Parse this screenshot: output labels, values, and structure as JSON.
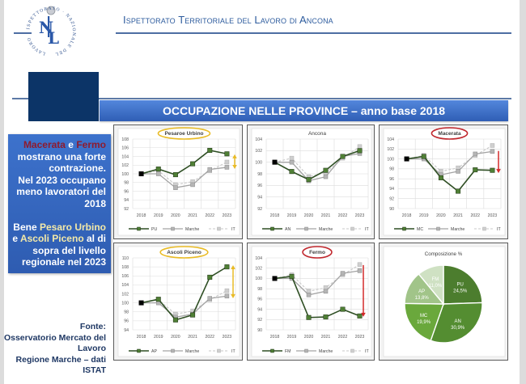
{
  "header": {
    "title": "Ispettorato Territoriale del Lavoro di Ancona",
    "logo": {
      "ring_text": "LAVORO · ISPETTORATO · NAZIONALE DEL",
      "monogram_top": "N",
      "monogram_bottom": "L"
    }
  },
  "section": {
    "title": "OCCUPAZIONE NELLE PROVINCE – anno base 2018"
  },
  "colors": {
    "navy": "#0c3467",
    "title_bar": "#3e70c8",
    "province_line": "#2f4f24",
    "province_marker": "#4f7f35",
    "marche": "#a3a3a3",
    "it": "#c9c9c9",
    "highlight_yellow": "#e9bb25",
    "highlight_red": "#c0272d"
  },
  "textbox": {
    "p1": {
      "s1": "Macerata",
      "s2": " e ",
      "s3": "Fermo",
      "s4": " mostrano una forte contrazione.",
      "s5": "Nel 2023 occupano meno lavoratori del 2018"
    },
    "p2": {
      "s1": "Bene ",
      "s2": "Pesaro Urbino",
      "s3": " e ",
      "s4": "Ascoli Piceno",
      "s5": " al di sopra del livello regionale nel 2023"
    }
  },
  "source": {
    "label": "Fonte:",
    "line1": "Osservatorio Mercato del Lavoro",
    "line2": "Regione Marche – dati ISTAT"
  },
  "chart_data": [
    {
      "type": "line",
      "title": "Pesaroe Urbino",
      "categories": [
        "2018",
        "2019",
        "2020",
        "2021",
        "2022",
        "2023"
      ],
      "ylim": [
        92,
        108
      ],
      "ystep": 2,
      "grid": true,
      "legend_position": "bottom",
      "series": [
        {
          "name": "PU",
          "values": [
            100,
            101.1,
            99.8,
            102.3,
            105.4,
            104.6
          ],
          "style": "province"
        },
        {
          "name": "Marche",
          "values": [
            100,
            100.0,
            96.8,
            97.5,
            101.0,
            101.5
          ],
          "style": "marche"
        },
        {
          "name": "IT",
          "values": [
            100,
            100.7,
            97.5,
            98.2,
            100.7,
            102.7
          ],
          "style": "it"
        }
      ],
      "annotations": {
        "title_ellipse": "#e9bb25",
        "arrow": {
          "color": "#e9bb25",
          "double": true,
          "from": 104.3,
          "to": 101.3,
          "x": 149
        }
      }
    },
    {
      "type": "line",
      "title": "Ancona",
      "categories": [
        "2018",
        "2019",
        "2020",
        "2021",
        "2022",
        "2023"
      ],
      "ylim": [
        92,
        104
      ],
      "ystep": 2,
      "grid": true,
      "legend_position": "bottom",
      "series": [
        {
          "name": "AN",
          "values": [
            100,
            98.4,
            97.0,
            98.6,
            101.0,
            102.0
          ],
          "style": "province"
        },
        {
          "name": "Marche",
          "values": [
            100,
            100.0,
            96.8,
            97.5,
            101.0,
            101.5
          ],
          "style": "marche"
        },
        {
          "name": "IT",
          "values": [
            100,
            100.7,
            97.5,
            98.2,
            100.7,
            102.7
          ],
          "style": "it"
        }
      ],
      "annotations": {}
    },
    {
      "type": "line",
      "title": "Macerata",
      "categories": [
        "2018",
        "2019",
        "2020",
        "2021",
        "2022",
        "2023"
      ],
      "ylim": [
        90,
        104
      ],
      "ystep": 2,
      "grid": true,
      "legend_position": "bottom",
      "series": [
        {
          "name": "MC",
          "values": [
            100,
            100.5,
            96.2,
            93.5,
            97.8,
            97.7
          ],
          "style": "province"
        },
        {
          "name": "Marche",
          "values": [
            100,
            100.0,
            96.8,
            97.5,
            101.0,
            101.5
          ],
          "style": "marche"
        },
        {
          "name": "IT",
          "values": [
            100,
            100.7,
            97.5,
            98.2,
            100.7,
            102.7
          ],
          "style": "it"
        }
      ],
      "annotations": {
        "title_ellipse": "#c0272d",
        "arrow": {
          "color": "#d42a2a",
          "double": false,
          "from": 101.6,
          "to": 97.3,
          "x": 147
        }
      }
    },
    {
      "type": "line",
      "title": "Ascoli Piceno",
      "categories": [
        "2018",
        "2019",
        "2020",
        "2021",
        "2022",
        "2023"
      ],
      "ylim": [
        94,
        110
      ],
      "ystep": 2,
      "grid": true,
      "legend_position": "bottom",
      "series": [
        {
          "name": "AP",
          "values": [
            100,
            100.8,
            96.2,
            97.3,
            105.7,
            108.0
          ],
          "style": "province"
        },
        {
          "name": "Marche",
          "values": [
            100,
            100.0,
            96.8,
            97.5,
            101.0,
            101.5
          ],
          "style": "marche"
        },
        {
          "name": "IT",
          "values": [
            100,
            100.7,
            97.5,
            98.2,
            100.7,
            102.7
          ],
          "style": "it"
        }
      ],
      "annotations": {
        "title_ellipse": "#e9bb25",
        "arrow": {
          "color": "#e9bb25",
          "double": true,
          "from": 108.2,
          "to": 101.2,
          "x": 147
        }
      }
    },
    {
      "type": "line",
      "title": "Fermo",
      "categories": [
        "2018",
        "2019",
        "2020",
        "2021",
        "2022",
        "2023"
      ],
      "ylim": [
        90,
        104
      ],
      "ystep": 2,
      "grid": true,
      "legend_position": "bottom",
      "series": [
        {
          "name": "FM",
          "values": [
            100,
            100.4,
            92.4,
            92.5,
            94.0,
            92.7
          ],
          "style": "province"
        },
        {
          "name": "Marche",
          "values": [
            100,
            100.0,
            96.8,
            97.5,
            101.0,
            101.5
          ],
          "style": "marche"
        },
        {
          "name": "IT",
          "values": [
            100,
            100.7,
            97.5,
            98.2,
            100.7,
            102.7
          ],
          "style": "it"
        }
      ],
      "annotations": {
        "title_ellipse": "#c0272d",
        "arrow": {
          "color": "#d42a2a",
          "double": false,
          "from": 102.6,
          "to": 92.7,
          "x": 143
        }
      }
    },
    {
      "type": "pie",
      "title": "Composizione %",
      "categories": [
        "PU",
        "AN",
        "MC",
        "AP",
        "FM"
      ],
      "values": [
        24.5,
        30.9,
        19.9,
        13.8,
        11.0
      ],
      "labels": [
        "24,5%",
        "30,9%",
        "19,9%",
        "13,8%",
        "11,0%"
      ],
      "colors": [
        "#4c7d2e",
        "#548d31",
        "#6aa83c",
        "#a1c489",
        "#cfe1c3"
      ],
      "label_colors": [
        "#ffffff",
        "#ffffff",
        "#ffffff",
        "#ffffff",
        "#ffffff"
      ]
    }
  ]
}
